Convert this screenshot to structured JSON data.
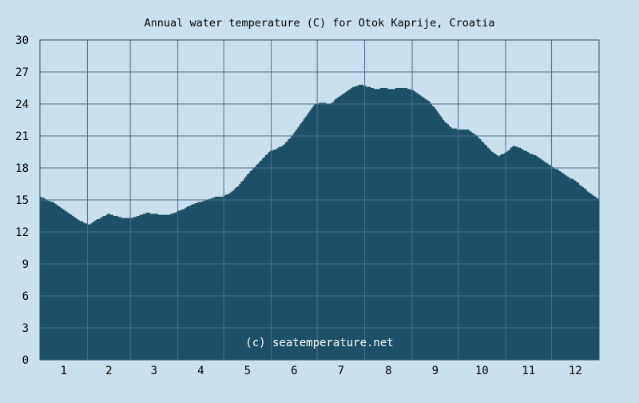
{
  "chart_data": {
    "type": "area",
    "title": "Annual water temperature (C) for Otok Kaprije, Croatia",
    "xlabel": "",
    "ylabel": "",
    "x_ticks": [
      "1",
      "2",
      "3",
      "4",
      "5",
      "6",
      "7",
      "8",
      "9",
      "10",
      "11",
      "12"
    ],
    "y_ticks": [
      0,
      3,
      6,
      9,
      12,
      15,
      18,
      21,
      24,
      27,
      30
    ],
    "ylim": [
      0,
      30
    ],
    "xlim": [
      1,
      366
    ],
    "grid": true,
    "watermark": "(c) seatemperature.net",
    "series": [
      {
        "x": [
          1,
          5,
          10,
          15,
          20,
          25,
          30,
          33,
          36,
          40,
          45,
          50,
          55,
          60,
          65,
          70,
          75,
          80,
          85,
          90,
          95,
          100,
          105,
          110,
          115,
          120,
          125,
          130,
          135,
          140,
          145,
          150,
          155,
          160,
          165,
          170,
          175,
          180,
          185,
          190,
          195,
          200,
          205,
          210,
          215,
          220,
          225,
          230,
          235,
          240,
          245,
          250,
          255,
          260,
          265,
          270,
          275,
          280,
          285,
          290,
          295,
          300,
          305,
          310,
          315,
          320,
          325,
          330,
          335,
          340,
          345,
          350,
          355,
          360,
          366
        ],
        "y": [
          15.3,
          15.0,
          14.7,
          14.2,
          13.7,
          13.2,
          12.8,
          12.7,
          13.0,
          13.3,
          13.7,
          13.5,
          13.3,
          13.3,
          13.5,
          13.8,
          13.7,
          13.6,
          13.6,
          13.9,
          14.2,
          14.6,
          14.8,
          15.0,
          15.3,
          15.3,
          15.7,
          16.3,
          17.2,
          18.0,
          18.7,
          19.5,
          19.8,
          20.2,
          21.0,
          22.0,
          23.0,
          24.0,
          24.1,
          24.0,
          24.6,
          25.1,
          25.6,
          25.8,
          25.6,
          25.4,
          25.5,
          25.4,
          25.5,
          25.5,
          25.2,
          24.7,
          24.2,
          23.3,
          22.3,
          21.7,
          21.6,
          21.6,
          21.1,
          20.4,
          19.6,
          19.1,
          19.5,
          20.1,
          19.8,
          19.4,
          19.1,
          18.6,
          18.1,
          17.7,
          17.2,
          16.8,
          16.2,
          15.6,
          15.0
        ]
      }
    ],
    "colors": {
      "area": "#1d5068",
      "background": "#c9e1ef",
      "grid": "#4a6e8c",
      "frame": "#2d4f6b",
      "text": "#000000"
    }
  }
}
